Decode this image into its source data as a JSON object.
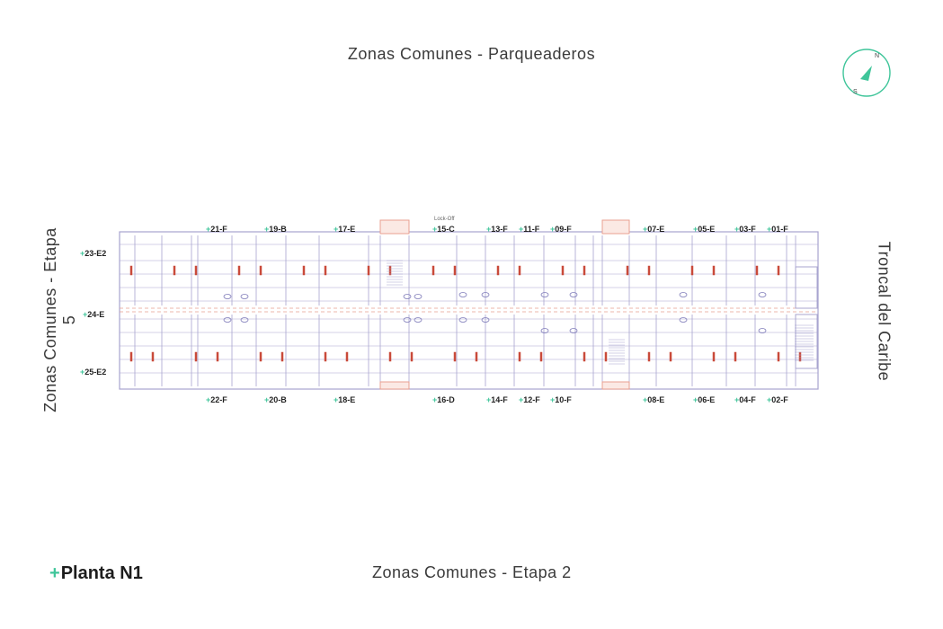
{
  "title": {
    "plus": "+",
    "text": "Planta N1"
  },
  "labels": {
    "top": "Zonas Comunes - Parqueaderos",
    "bottom": "Zonas Comunes - Etapa 2",
    "left": "Zonas Comunes - Etapa 5",
    "right": "Troncal del Caribe"
  },
  "lockoff": "Lock-Off",
  "compass": {
    "north": "N",
    "south": "S",
    "accent": "#3fc59a"
  },
  "colors": {
    "accent": "#3fc59a",
    "wall": "#a8a4cf",
    "door": "#e8a090",
    "furniture": "#c94a3a"
  },
  "units": {
    "top": [
      "21-F",
      "19-B",
      "17-E",
      "15-C",
      "13-F",
      "11-F",
      "09-F",
      "07-E",
      "05-E",
      "03-F",
      "01-F"
    ],
    "bottom": [
      "22-F",
      "20-B",
      "18-E",
      "16-D",
      "14-F",
      "12-F",
      "10-F",
      "08-E",
      "06-E",
      "04-F",
      "02-F"
    ],
    "left": [
      "23-E2",
      "24-E",
      "25-E2"
    ]
  }
}
